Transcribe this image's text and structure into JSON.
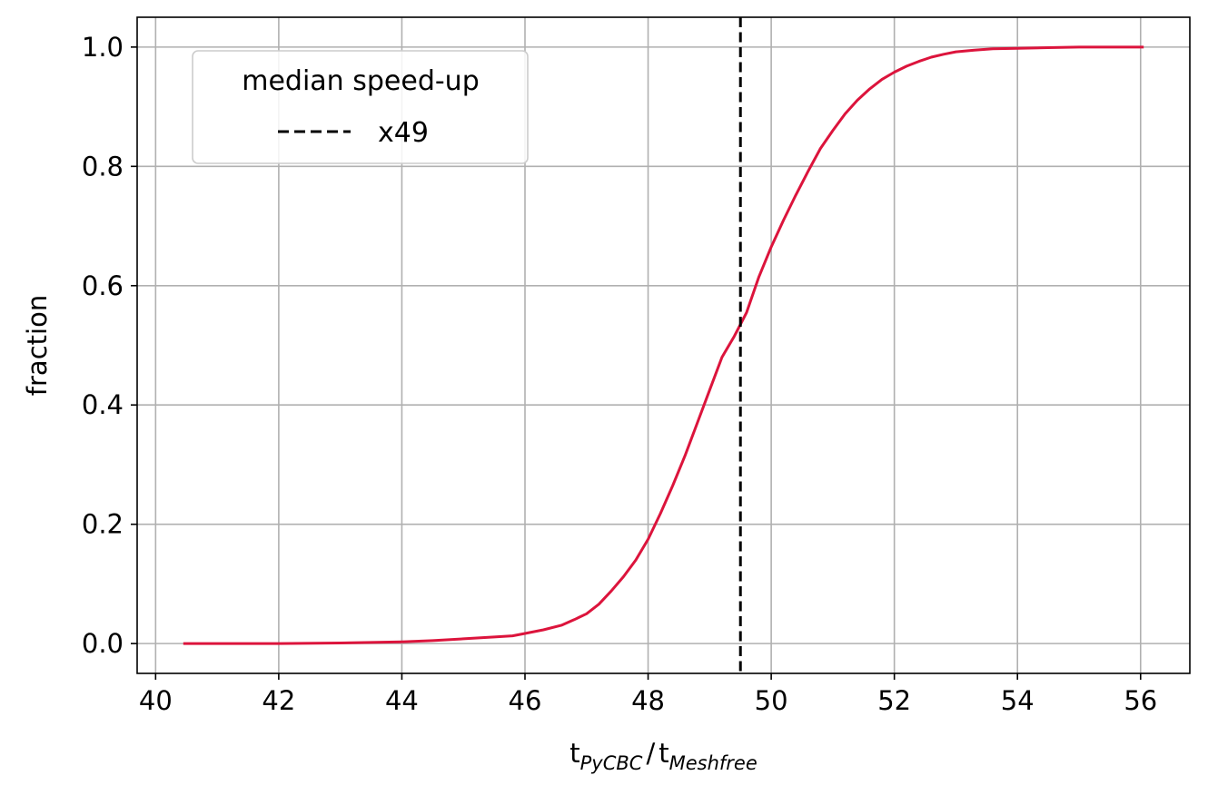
{
  "chart_data": {
    "type": "line",
    "title": "",
    "xlabel": {
      "base": "t",
      "numerator_sub": "PyCBC",
      "separator": "/",
      "denominator_sub": "Meshfree"
    },
    "ylabel": "fraction",
    "xlim": [
      39.7,
      56.8
    ],
    "ylim": [
      -0.05,
      1.05
    ],
    "x_ticks": [
      40,
      42,
      44,
      46,
      48,
      50,
      52,
      54,
      56
    ],
    "y_ticks": [
      0.0,
      0.2,
      0.4,
      0.6,
      0.8,
      1.0
    ],
    "x_tick_labels": [
      "40",
      "42",
      "44",
      "46",
      "48",
      "50",
      "52",
      "54",
      "56"
    ],
    "y_tick_labels": [
      "0.0",
      "0.2",
      "0.4",
      "0.6",
      "0.8",
      "1.0"
    ],
    "grid": true,
    "series": [
      {
        "color": "#dc143c",
        "x": [
          40.45,
          42.0,
          43.0,
          44.0,
          44.5,
          45.0,
          45.5,
          45.8,
          46.0,
          46.3,
          46.6,
          46.8,
          47.0,
          47.2,
          47.4,
          47.6,
          47.8,
          48.0,
          48.2,
          48.4,
          48.6,
          48.8,
          49.0,
          49.2,
          49.4,
          49.5,
          49.6,
          49.8,
          50.0,
          50.2,
          50.4,
          50.6,
          50.8,
          51.0,
          51.2,
          51.4,
          51.6,
          51.8,
          52.0,
          52.2,
          52.4,
          52.6,
          52.8,
          53.0,
          53.3,
          53.6,
          54.0,
          54.5,
          55.0,
          56.05
        ],
        "y": [
          0.0,
          0.0,
          0.001,
          0.003,
          0.005,
          0.008,
          0.011,
          0.013,
          0.017,
          0.023,
          0.031,
          0.04,
          0.05,
          0.066,
          0.088,
          0.112,
          0.14,
          0.175,
          0.218,
          0.265,
          0.315,
          0.37,
          0.425,
          0.48,
          0.515,
          0.535,
          0.555,
          0.615,
          0.665,
          0.71,
          0.752,
          0.792,
          0.83,
          0.86,
          0.888,
          0.911,
          0.93,
          0.946,
          0.958,
          0.968,
          0.976,
          0.983,
          0.988,
          0.992,
          0.995,
          0.997,
          0.998,
          0.999,
          1.0,
          1.0
        ]
      }
    ],
    "vlines": [
      {
        "x": 49.5,
        "style": "dashed",
        "color": "#000000"
      }
    ],
    "legend": {
      "title": "median speed-up",
      "placement": "top-left",
      "entries": [
        {
          "label": "x49",
          "style": "dashed",
          "color": "#000000"
        }
      ]
    }
  }
}
